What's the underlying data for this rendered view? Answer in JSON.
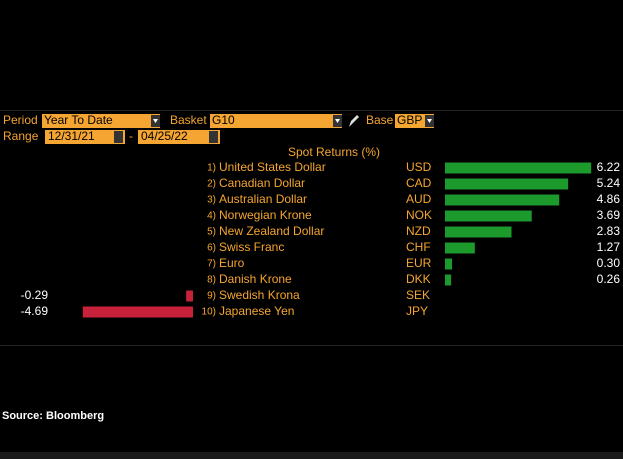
{
  "controls": {
    "period_label": "Period",
    "period": "Year To Date",
    "basket_label": "Basket",
    "basket": "G10",
    "base_label": "Base",
    "base": "GBP",
    "range_label": "Range",
    "start": "12/31/21",
    "separator": "-",
    "end": "04/25/22"
  },
  "chart_data": {
    "type": "bar",
    "title": "Spot Returns (%)",
    "ranks": [
      "1)",
      "2)",
      "3)",
      "4)",
      "5)",
      "6)",
      "7)",
      "8)",
      "9)",
      "10)"
    ],
    "categories": [
      "United States Dollar",
      "Canadian Dollar",
      "Australian Dollar",
      "Norwegian Krone",
      "New Zealand Dollar",
      "Swiss Franc",
      "Euro",
      "Danish Krone",
      "Swedish Krona",
      "Japanese Yen"
    ],
    "codes": [
      "USD",
      "CAD",
      "AUD",
      "NOK",
      "NZD",
      "CHF",
      "EUR",
      "DKK",
      "SEK",
      "JPY"
    ],
    "values": [
      6.22,
      5.24,
      4.86,
      3.69,
      2.83,
      1.27,
      0.3,
      0.26,
      -0.29,
      -4.69
    ],
    "value_labels": [
      "6.22",
      "5.24",
      "4.86",
      "3.69",
      "2.83",
      "1.27",
      "0.30",
      "0.26",
      "-0.29",
      "-4.69"
    ],
    "positive_color": "#1c9a2c",
    "negative_color": "#c8213a"
  },
  "source": "Source: Bloomberg"
}
